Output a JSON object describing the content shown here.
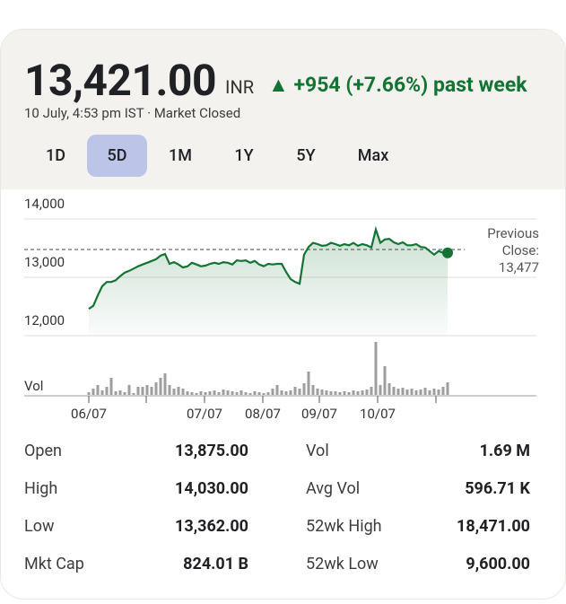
{
  "header": {
    "price": "13,421.00",
    "currency": "INR",
    "change": "▲ +954 (+7.66%) past week",
    "timestamp": "10 July, 4:53 pm IST · Market Closed"
  },
  "tabs": {
    "items": [
      "1D",
      "5D",
      "1M",
      "1Y",
      "5Y",
      "Max"
    ],
    "selected": 1
  },
  "chart_data": {
    "type": "line",
    "color": "#137333",
    "x": [
      0,
      1,
      2,
      3,
      4,
      5,
      6,
      7,
      8,
      9,
      10,
      11,
      12,
      13,
      14,
      15,
      16,
      17,
      18,
      19,
      20,
      21,
      22,
      23,
      24,
      25,
      26,
      27,
      28,
      29,
      30,
      31,
      32,
      33,
      34,
      35,
      36,
      37,
      38,
      39,
      40,
      41,
      42,
      43,
      44,
      45,
      46,
      47,
      48,
      49,
      50,
      51,
      52,
      53,
      54,
      55,
      56,
      57,
      58,
      59,
      60,
      61,
      62,
      63,
      64,
      65,
      66,
      67,
      68,
      69,
      70,
      71,
      72,
      73,
      74,
      75,
      76,
      77,
      78,
      79,
      80
    ],
    "values": [
      12460,
      12510,
      12690,
      12850,
      12920,
      12920,
      12950,
      13020,
      13080,
      13110,
      13150,
      13190,
      13220,
      13250,
      13280,
      13310,
      13370,
      13400,
      13230,
      13260,
      13220,
      13170,
      13190,
      13250,
      13220,
      13190,
      13200,
      13230,
      13250,
      13230,
      13260,
      13250,
      13220,
      13290,
      13280,
      13290,
      13250,
      13280,
      13220,
      13190,
      13230,
      13220,
      13230,
      13230,
      13090,
      12970,
      12920,
      12890,
      13390,
      13520,
      13590,
      13570,
      13540,
      13550,
      13590,
      13570,
      13540,
      13570,
      13550,
      13590,
      13540,
      13570,
      13550,
      13510,
      13820,
      13590,
      13650,
      13660,
      13600,
      13570,
      13600,
      13550,
      13550,
      13570,
      13520,
      13510,
      13450,
      13390,
      13450,
      13420,
      13420
    ],
    "xlim": [
      0,
      80
    ],
    "xticks": [
      {
        "value": 0,
        "label": "06/07"
      },
      12.8,
      {
        "value": 25.8,
        "label": "07/07"
      },
      {
        "value": 38.8,
        "label": "08/07"
      },
      {
        "value": 51.4,
        "label": "09/07"
      },
      {
        "value": 64.4,
        "label": "10/07"
      },
      77.4
    ],
    "ylim": [
      12000,
      14000
    ],
    "yticks": [
      {
        "value": 12000,
        "label": "12,000"
      },
      {
        "value": 13000,
        "label": "13,000"
      },
      {
        "value": 14000,
        "label": "14,000"
      }
    ],
    "grid": true,
    "previous_close": {
      "value": 13477,
      "label": "13,477"
    },
    "previous_close_label": "Previous Close:",
    "volume": {
      "name": "Vol",
      "color": "#9e9e9e",
      "values": [
        4,
        8,
        12,
        6,
        10,
        20,
        5,
        6,
        4,
        12,
        3,
        10,
        10,
        12,
        10,
        15,
        20,
        25,
        12,
        8,
        10,
        8,
        5,
        4,
        3,
        5,
        4,
        5,
        6,
        4,
        7,
        6,
        5,
        4,
        6,
        4,
        3,
        5,
        4,
        3,
        4,
        8,
        12,
        6,
        5,
        6,
        10,
        8,
        14,
        27,
        12,
        8,
        7,
        6,
        5,
        5,
        4,
        5,
        4,
        6,
        5,
        6,
        7,
        10,
        60,
        12,
        33,
        14,
        10,
        8,
        9,
        7,
        8,
        6,
        7,
        9,
        6,
        8,
        7,
        10,
        15
      ]
    },
    "vol_ylim": [
      0,
      60
    ]
  },
  "stats": {
    "rows": [
      [
        "Open",
        "13,875.00",
        "Vol",
        "1.69 M"
      ],
      [
        "High",
        "14,030.00",
        "Avg Vol",
        "596.71 K"
      ],
      [
        "Low",
        "13,362.00",
        "52wk High",
        "18,471.00"
      ],
      [
        "Mkt Cap",
        "824.01 B",
        "52wk Low",
        "9,600.00"
      ]
    ]
  }
}
